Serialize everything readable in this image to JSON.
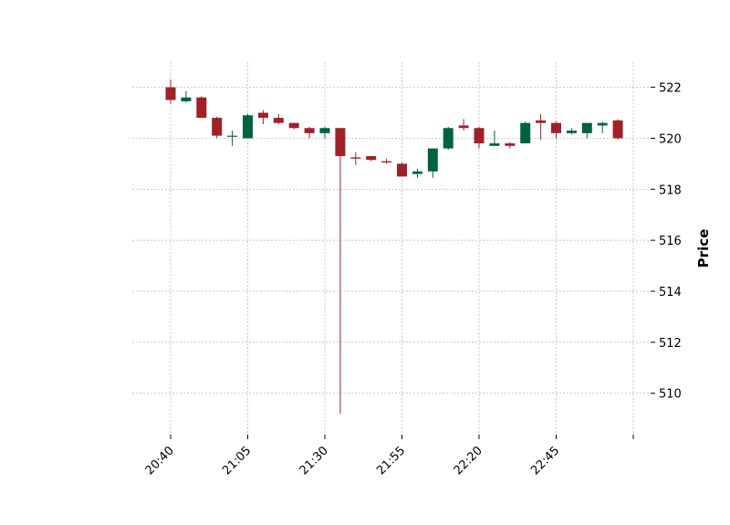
{
  "chart_data": {
    "type": "candlestick",
    "title": "",
    "xlabel": "",
    "ylabel": "Price",
    "y_axis_side": "right",
    "ylim": [
      508.5,
      522.9
    ],
    "y_ticks": [
      510,
      512,
      514,
      516,
      518,
      520,
      522
    ],
    "x_tick_labels": [
      "20:40",
      "21:05",
      "21:30",
      "21:55",
      "22:20",
      "22:45",
      ""
    ],
    "x_tick_candle_index": [
      0,
      5,
      10,
      15,
      20,
      25,
      30
    ],
    "grid": true,
    "colors": {
      "up": "#006340",
      "down": "#a02128",
      "grid": "#b0b0b0"
    },
    "candles": [
      {
        "time": "20:40",
        "open": 522.0,
        "high": 522.3,
        "low": 521.35,
        "close": 521.5
      },
      {
        "time": "20:45",
        "open": 521.45,
        "high": 521.85,
        "low": 521.4,
        "close": 521.6
      },
      {
        "time": "20:50",
        "open": 521.6,
        "high": 521.65,
        "low": 520.8,
        "close": 520.8
      },
      {
        "time": "20:55",
        "open": 520.8,
        "high": 520.85,
        "low": 520.0,
        "close": 520.1
      },
      {
        "time": "21:00",
        "open": 520.1,
        "high": 520.3,
        "low": 519.7,
        "close": 520.1
      },
      {
        "time": "21:05",
        "open": 520.0,
        "high": 520.95,
        "low": 520.0,
        "close": 520.9
      },
      {
        "time": "21:10",
        "open": 521.0,
        "high": 521.1,
        "low": 520.55,
        "close": 520.8
      },
      {
        "time": "21:15",
        "open": 520.8,
        "high": 520.95,
        "low": 520.55,
        "close": 520.6
      },
      {
        "time": "21:20",
        "open": 520.6,
        "high": 520.6,
        "low": 520.35,
        "close": 520.4
      },
      {
        "time": "21:25",
        "open": 520.4,
        "high": 520.45,
        "low": 520.0,
        "close": 520.2
      },
      {
        "time": "21:30",
        "open": 520.2,
        "high": 520.45,
        "low": 520.0,
        "close": 520.4
      },
      {
        "time": "21:35",
        "open": 520.4,
        "high": 520.4,
        "low": 509.2,
        "close": 519.3
      },
      {
        "time": "21:40",
        "open": 519.25,
        "high": 519.45,
        "low": 518.95,
        "close": 519.2
      },
      {
        "time": "21:45",
        "open": 519.3,
        "high": 519.3,
        "low": 519.1,
        "close": 519.15
      },
      {
        "time": "21:50",
        "open": 519.1,
        "high": 519.2,
        "low": 519.0,
        "close": 519.05
      },
      {
        "time": "21:55",
        "open": 519.0,
        "high": 519.05,
        "low": 518.5,
        "close": 518.5
      },
      {
        "time": "22:00",
        "open": 518.6,
        "high": 518.8,
        "low": 518.45,
        "close": 518.7
      },
      {
        "time": "22:05",
        "open": 518.7,
        "high": 519.6,
        "low": 518.45,
        "close": 519.6
      },
      {
        "time": "22:10",
        "open": 519.6,
        "high": 520.45,
        "low": 519.55,
        "close": 520.4
      },
      {
        "time": "22:15",
        "open": 520.5,
        "high": 520.75,
        "low": 520.3,
        "close": 520.4
      },
      {
        "time": "22:20",
        "open": 520.4,
        "high": 520.45,
        "low": 519.6,
        "close": 519.8
      },
      {
        "time": "22:25",
        "open": 519.7,
        "high": 520.3,
        "low": 519.7,
        "close": 519.8
      },
      {
        "time": "22:30",
        "open": 519.8,
        "high": 519.85,
        "low": 519.6,
        "close": 519.7
      },
      {
        "time": "22:35",
        "open": 519.8,
        "high": 520.65,
        "low": 519.8,
        "close": 520.6
      },
      {
        "time": "22:40",
        "open": 520.7,
        "high": 520.95,
        "low": 519.95,
        "close": 520.6
      },
      {
        "time": "22:45",
        "open": 520.6,
        "high": 520.65,
        "low": 520.0,
        "close": 520.2
      },
      {
        "time": "22:50",
        "open": 520.2,
        "high": 520.4,
        "low": 520.15,
        "close": 520.3
      },
      {
        "time": "22:55",
        "open": 520.2,
        "high": 520.6,
        "low": 520.0,
        "close": 520.6
      },
      {
        "time": "23:00",
        "open": 520.5,
        "high": 520.65,
        "low": 520.2,
        "close": 520.6
      },
      {
        "time": "23:05",
        "open": 520.7,
        "high": 520.75,
        "low": 519.95,
        "close": 520.0
      }
    ]
  }
}
